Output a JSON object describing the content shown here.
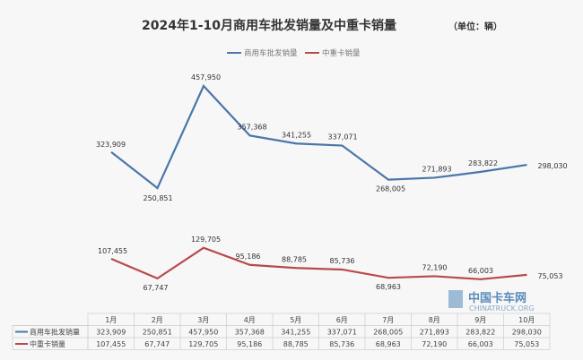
{
  "chart_data": {
    "type": "line",
    "title": "2024年1-10月商用车批发销量及中重卡销量",
    "unit_note": "（单位：辆）",
    "categories": [
      "1月",
      "2月",
      "3月",
      "4月",
      "5月",
      "6月",
      "7月",
      "8月",
      "9月",
      "10月"
    ],
    "series": [
      {
        "name": "商用车批发销量",
        "color": "#4a76a8",
        "values": [
          323909,
          250851,
          457950,
          357368,
          341255,
          337071,
          268005,
          271893,
          283822,
          298030
        ],
        "labels": [
          "323,909",
          "250,851",
          "457,950",
          "357,368",
          "341,255",
          "337,071",
          "268,005",
          "271,893",
          "283,822",
          "298,030"
        ]
      },
      {
        "name": "中重卡销量",
        "color": "#b84a4a",
        "values": [
          107455,
          67747,
          129705,
          95186,
          88785,
          85736,
          68963,
          72190,
          66003,
          75053
        ],
        "labels": [
          "107,455",
          "67,747",
          "129,705",
          "95,186",
          "88,785",
          "85,736",
          "68,963",
          "72,190",
          "66,003",
          "75,053"
        ]
      }
    ],
    "legend": "top-center",
    "grid": false,
    "data_table": true
  },
  "watermark": {
    "text": "中国卡车网",
    "sub": "CHINATRUCK.ORG"
  }
}
